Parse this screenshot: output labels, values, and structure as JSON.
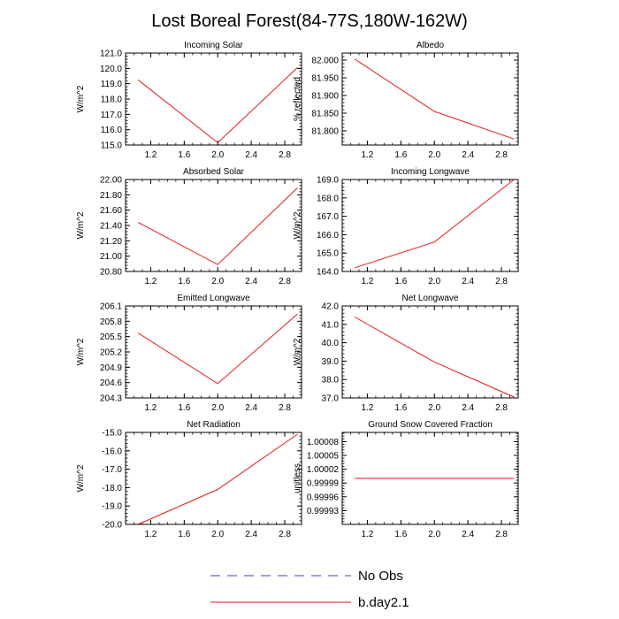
{
  "title": "Lost Boreal Forest(84-77S,180W-162W)",
  "legend": [
    {
      "label": "No Obs",
      "color": "#3c3cc8",
      "style": "dashed"
    },
    {
      "label": "b.day2.1",
      "color": "#e41a1c",
      "style": "solid"
    }
  ],
  "chart_data": [
    {
      "type": "line",
      "title": "Incoming Solar",
      "ylabel": "W/m^2",
      "x": [
        1.05,
        2.0,
        2.95
      ],
      "y": [
        119.25,
        115.15,
        120.05
      ],
      "xlim": [
        0.9,
        3.0
      ],
      "ylim": [
        115.0,
        121.0
      ],
      "xticks": [
        "1.2",
        "1.6",
        "2.0",
        "2.4",
        "2.8"
      ],
      "yticks": [
        "115.0",
        "116.0",
        "117.0",
        "118.0",
        "119.0",
        "120.0",
        "121.0"
      ]
    },
    {
      "type": "line",
      "title": "Albedo",
      "ylabel": "% reflected",
      "x": [
        1.05,
        2.0,
        2.95
      ],
      "y": [
        82.003,
        81.855,
        81.777
      ],
      "xlim": [
        0.9,
        3.0
      ],
      "ylim": [
        81.76,
        82.02
      ],
      "xticks": [
        "1.2",
        "1.6",
        "2.0",
        "2.4",
        "2.8"
      ],
      "yticks": [
        "81.800",
        "81.850",
        "81.900",
        "81.950",
        "82.000"
      ]
    },
    {
      "type": "line",
      "title": "Absorbed Solar",
      "ylabel": "W/m^2",
      "x": [
        1.05,
        2.0,
        2.95
      ],
      "y": [
        21.44,
        20.89,
        21.89
      ],
      "xlim": [
        0.9,
        3.0
      ],
      "ylim": [
        20.8,
        22.0
      ],
      "xticks": [
        "1.2",
        "1.6",
        "2.0",
        "2.4",
        "2.8"
      ],
      "yticks": [
        "20.80",
        "21.00",
        "21.20",
        "21.40",
        "21.60",
        "21.80",
        "22.00"
      ]
    },
    {
      "type": "line",
      "title": "Incoming Longwave",
      "ylabel": "W/m^2",
      "x": [
        1.05,
        2.0,
        2.95
      ],
      "y": [
        164.2,
        165.6,
        169.0
      ],
      "xlim": [
        0.9,
        3.0
      ],
      "ylim": [
        164.0,
        169.0
      ],
      "xticks": [
        "1.2",
        "1.6",
        "2.0",
        "2.4",
        "2.8"
      ],
      "yticks": [
        "164.0",
        "165.0",
        "166.0",
        "167.0",
        "168.0",
        "169.0"
      ]
    },
    {
      "type": "line",
      "title": "Emitted Longwave",
      "ylabel": "W/m^2",
      "x": [
        1.05,
        2.0,
        2.95
      ],
      "y": [
        205.57,
        204.58,
        205.94
      ],
      "xlim": [
        0.9,
        3.0
      ],
      "ylim": [
        204.3,
        206.1
      ],
      "xticks": [
        "1.2",
        "1.6",
        "2.0",
        "2.4",
        "2.8"
      ],
      "yticks": [
        "204.3",
        "204.6",
        "204.9",
        "205.2",
        "205.5",
        "205.8",
        "206.1"
      ]
    },
    {
      "type": "line",
      "title": "Net Longwave",
      "ylabel": "W/m^2",
      "x": [
        1.05,
        2.0,
        2.95
      ],
      "y": [
        41.4,
        38.95,
        37.05
      ],
      "xlim": [
        0.9,
        3.0
      ],
      "ylim": [
        37.0,
        42.0
      ],
      "xticks": [
        "1.2",
        "1.6",
        "2.0",
        "2.4",
        "2.8"
      ],
      "yticks": [
        "37.0",
        "38.0",
        "39.0",
        "40.0",
        "41.0",
        "42.0"
      ]
    },
    {
      "type": "line",
      "title": "Net Radiation",
      "ylabel": "W/m^2",
      "x": [
        1.05,
        2.0,
        2.95
      ],
      "y": [
        -20.0,
        -18.1,
        -15.1
      ],
      "xlim": [
        0.9,
        3.0
      ],
      "ylim": [
        -20.0,
        -15.0
      ],
      "xticks": [
        "1.2",
        "1.6",
        "2.0",
        "2.4",
        "2.8"
      ],
      "yticks": [
        "-20.0",
        "-19.0",
        "-18.0",
        "-17.0",
        "-16.0",
        "-15.0"
      ]
    },
    {
      "type": "line",
      "title": "Ground Snow Covered Fraction",
      "ylabel": "unitless",
      "x": [
        1.05,
        2.0,
        2.95
      ],
      "y": [
        1.0,
        1.0,
        1.0
      ],
      "xlim": [
        0.9,
        3.0
      ],
      "ylim": [
        0.9999,
        1.0001
      ],
      "xticks": [
        "1.2",
        "1.6",
        "2.0",
        "2.4",
        "2.8"
      ],
      "yticks": [
        "0.99993",
        "0.99996",
        "0.99999",
        "1.00002",
        "1.00005",
        "1.00008"
      ]
    }
  ]
}
